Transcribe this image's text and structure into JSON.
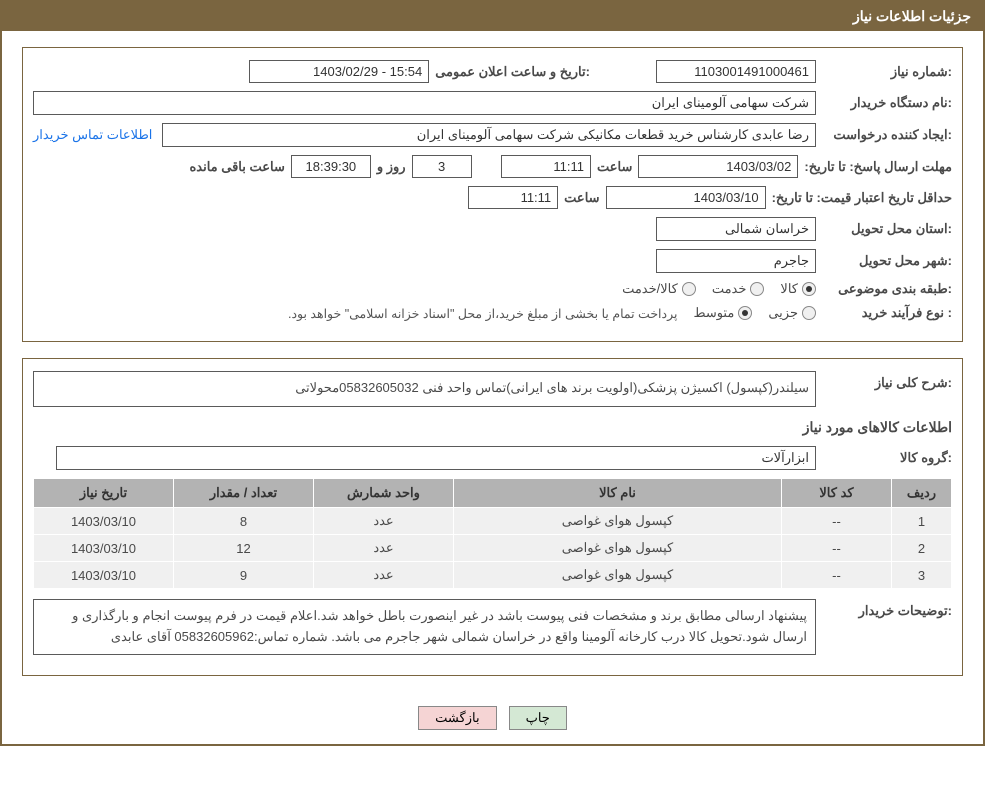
{
  "header": {
    "title": "جزئیات اطلاعات نیاز"
  },
  "form": {
    "need_number_label": ":شماره نیاز",
    "need_number": "1103001491000461",
    "announce_datetime_label": ":تاریخ و ساعت اعلان عمومی",
    "announce_datetime": "15:54 - 1403/02/29",
    "buyer_org_label": ":نام دستگاه خریدار",
    "buyer_org": "شرکت سهامی آلومینای ایران",
    "requester_label": ":ایجاد کننده درخواست",
    "requester": "رضا عابدی کارشناس خرید قطعات مکانیکی شرکت سهامی آلومینای ایران",
    "contact_link": "اطلاعات تماس خریدار",
    "reply_deadline_label": "مهلت ارسال پاسخ: تا تاریخ:",
    "reply_deadline_date": "1403/03/02",
    "time_label": "ساعت",
    "reply_deadline_time": "11:11",
    "days_remaining": "3",
    "days_and_label": "روز و",
    "countdown_time": "18:39:30",
    "hours_remaining_label": "ساعت باقی مانده",
    "price_validity_label": "حداقل تاریخ اعتبار قیمت: تا تاریخ:",
    "price_validity_date": "1403/03/10",
    "price_validity_time": "11:11",
    "delivery_province_label": ":استان محل تحویل",
    "delivery_province": "خراسان شمالی",
    "delivery_city_label": ":شهر محل تحویل",
    "delivery_city": "جاجرم",
    "category_label": ":طبقه بندی موضوعی",
    "category_opts": {
      "goods": "کالا",
      "service": "خدمت",
      "goods_service": "کالا/خدمت"
    },
    "purchase_type_label": ": نوع فرآیند خرید",
    "purchase_type_opts": {
      "minor": "جزیی",
      "medium": "متوسط"
    },
    "purchase_note": "پرداخت تمام یا بخشی از مبلغ خرید،از محل \"اسناد خزانه اسلامی\" خواهد بود."
  },
  "details": {
    "desc_label": ":شرح کلی نیاز",
    "desc_text": "سیلندر(کپسول) اکسیژن پزشکی(اولویت برند های ایرانی)تماس واحد فنی 05832605032محولاتی",
    "items_title": "اطلاعات کالاهای مورد نیاز",
    "group_label": ":گروه کالا",
    "group_value": "ابزارآلات",
    "buyer_note_label": ":توضیحات خریدار",
    "buyer_note": "پیشنهاد ارسالی مطابق برند و مشخصات فنی پیوست باشد در غیر اینصورت باطل خواهد شد.اعلام قیمت در فرم پیوست انجام و بارگذاری و ارسال شود.تحویل کالا درب کارخانه آلومینا واقع در خراسان شمالی شهر جاجرم می باشد. شماره تماس:05832605962 آقای عابدی"
  },
  "table": {
    "headers": {
      "row": "ردیف",
      "code": "کد کالا",
      "name": "نام کالا",
      "unit": "واحد شمارش",
      "qty": "تعداد / مقدار",
      "need_date": "تاریخ نیاز"
    },
    "rows": [
      {
        "row": "1",
        "code": "--",
        "name": "کپسول هوای غواصی",
        "unit": "عدد",
        "qty": "8",
        "need_date": "1403/03/10"
      },
      {
        "row": "2",
        "code": "--",
        "name": "کپسول هوای غواصی",
        "unit": "عدد",
        "qty": "12",
        "need_date": "1403/03/10"
      },
      {
        "row": "3",
        "code": "--",
        "name": "کپسول هوای غواصی",
        "unit": "عدد",
        "qty": "9",
        "need_date": "1403/03/10"
      }
    ]
  },
  "buttons": {
    "print": "چاپ",
    "back": "بازگشت"
  }
}
